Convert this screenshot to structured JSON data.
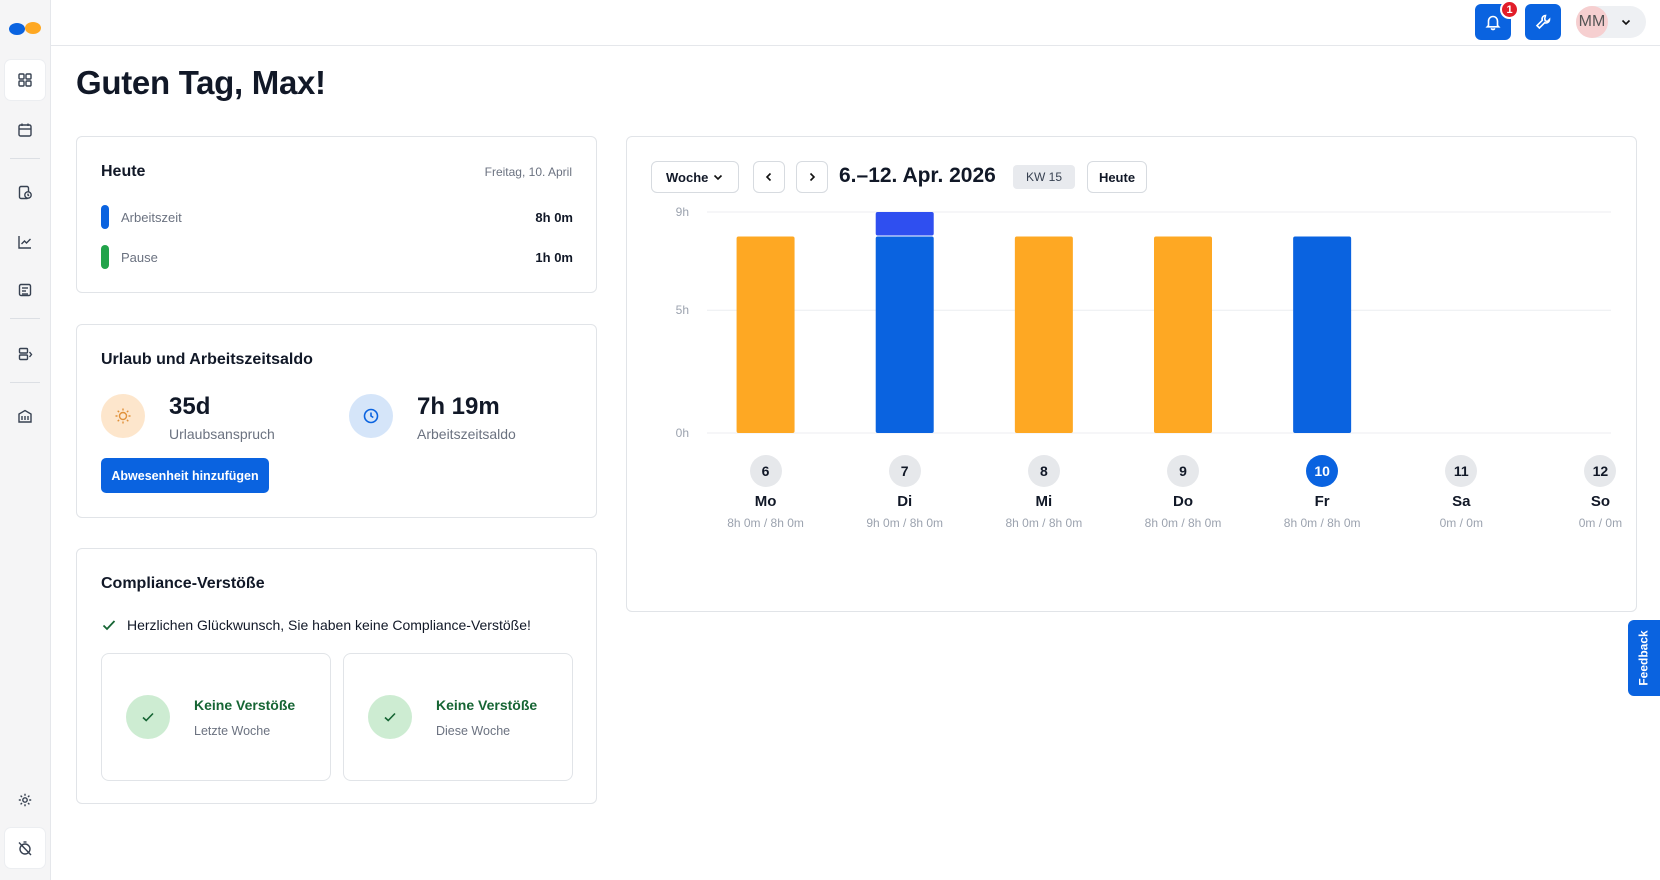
{
  "header": {
    "notification_count": "1",
    "user_initials": "MM"
  },
  "page_title": "Guten Tag, Max!",
  "today": {
    "title": "Heute",
    "date": "Freitag, 10. April",
    "items": [
      {
        "label": "Arbeitszeit",
        "value": "8h 0m",
        "color": "#0a63e0"
      },
      {
        "label": "Pause",
        "value": "1h 0m",
        "color": "#22a34a"
      }
    ]
  },
  "vacation": {
    "title": "Urlaub und Arbeitszeitsaldo",
    "vacation_value": "35d",
    "vacation_label": "Urlaubsanspruch",
    "balance_value": "7h 19m",
    "balance_label": "Arbeitszeitsaldo",
    "add_button": "Abwesenheit hinzufügen"
  },
  "compliance": {
    "title": "Compliance-Verstöße",
    "message": "Herzlichen Glückwunsch, Sie haben keine Compliance-Verstöße!",
    "cards": [
      {
        "title": "Keine Verstöße",
        "label": "Letzte Woche"
      },
      {
        "title": "Keine Verstöße",
        "label": "Diese Woche"
      }
    ]
  },
  "week": {
    "view_select": "Woche",
    "range": "6.–12. Apr. 2026",
    "kw": "KW 15",
    "today_button": "Heute"
  },
  "chart_data": {
    "type": "bar",
    "y_ticks": [
      "9h",
      "5h",
      "0h"
    ],
    "ylim": [
      0,
      9
    ],
    "colors": {
      "worked": "#0a63e0",
      "overtime": "#2f4ff0",
      "absence": "#fea823"
    },
    "days": [
      {
        "num": "6",
        "name": "Mo",
        "hours_text": "8h 0m / 8h 0m",
        "worked": 8,
        "kind": "absence",
        "today": false
      },
      {
        "num": "7",
        "name": "Di",
        "hours_text": "9h 0m / 8h 0m",
        "worked": 9,
        "kind": "worked",
        "today": false
      },
      {
        "num": "8",
        "name": "Mi",
        "hours_text": "8h 0m / 8h 0m",
        "worked": 8,
        "kind": "absence",
        "today": false
      },
      {
        "num": "9",
        "name": "Do",
        "hours_text": "8h 0m / 8h 0m",
        "worked": 8,
        "kind": "absence",
        "today": false
      },
      {
        "num": "10",
        "name": "Fr",
        "hours_text": "8h 0m / 8h 0m",
        "worked": 8,
        "kind": "worked",
        "today": true
      },
      {
        "num": "11",
        "name": "Sa",
        "hours_text": "0m / 0m",
        "worked": 0,
        "kind": "worked",
        "today": false
      },
      {
        "num": "12",
        "name": "So",
        "hours_text": "0m / 0m",
        "worked": 0,
        "kind": "worked",
        "today": false
      }
    ],
    "target_hours": 8
  },
  "feedback_label": "Feedback"
}
